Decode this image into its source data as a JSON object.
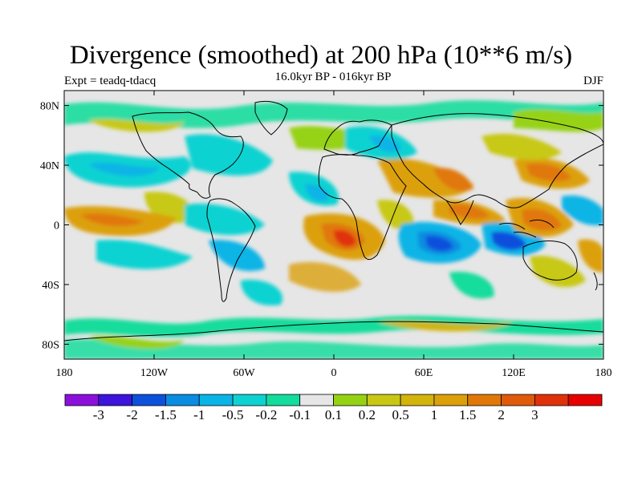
{
  "title": "Divergence (smoothed) at 200 hPa (10**6 m/s)",
  "subtitle": "16.0kyr BP - 016kyr BP",
  "experiment": "Expt = teadq-tdacq",
  "season": "DJF",
  "map": {
    "background_color": "#e6e6e6",
    "y_axis_labels": [
      "80N",
      "40N",
      "0",
      "40S",
      "80S"
    ],
    "y_axis_lats": [
      80,
      40,
      0,
      -40,
      -80
    ],
    "x_axis_labels": [
      "180",
      "120W",
      "60W",
      "0",
      "60E",
      "120E",
      "180"
    ],
    "x_axis_lons": [
      -180,
      -120,
      -60,
      0,
      60,
      120,
      180
    ]
  },
  "colorbar": {
    "colors": [
      "#8c10dc",
      "#3c14dc",
      "#0c50dc",
      "#0a8ce0",
      "#0ab4e6",
      "#0ed2d2",
      "#14dc9c",
      "#e6e6e6",
      "#96d214",
      "#c8c814",
      "#d2b40a",
      "#dca00a",
      "#e07808",
      "#e05a0a",
      "#e0320a",
      "#e60000"
    ],
    "labels": [
      "-3",
      "-2",
      "-1.5",
      "-1",
      "-0.5",
      "-0.2",
      "-0.1",
      "0.1",
      "0.2",
      "0.5",
      "1",
      "1.5",
      "2",
      "3"
    ]
  }
}
